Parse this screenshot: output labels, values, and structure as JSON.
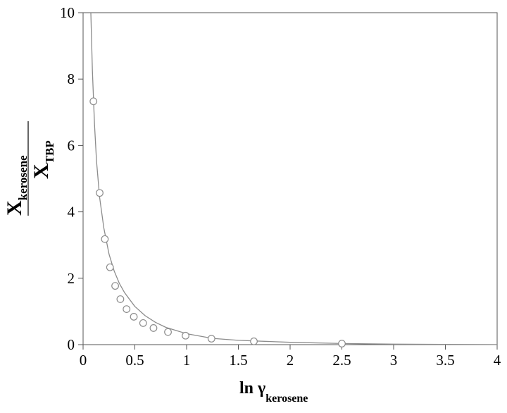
{
  "chart_data": {
    "type": "scatter",
    "xlabel": {
      "main": "ln γ",
      "sub": "kerosene"
    },
    "ylabel": {
      "numerator": {
        "main": "X",
        "sub": "kerosene"
      },
      "denominator": {
        "main": "X",
        "sub": "TBP"
      }
    },
    "xlim": [
      0,
      4
    ],
    "ylim": [
      0,
      10
    ],
    "x_ticks": [
      0,
      0.5,
      1,
      1.5,
      2,
      2.5,
      3,
      3.5,
      4
    ],
    "x_tick_labels": [
      "0",
      "0.5",
      "1",
      "1.5",
      "2",
      "2.5",
      "3",
      "3.5",
      "4"
    ],
    "y_ticks": [
      0,
      2,
      4,
      6,
      8,
      10
    ],
    "y_tick_labels": [
      "0",
      "2",
      "4",
      "6",
      "8",
      "10"
    ],
    "grid": false,
    "series": [
      {
        "kind": "points",
        "marker": "open-circle",
        "x": [
          0.1,
          0.16,
          0.21,
          0.26,
          0.31,
          0.36,
          0.42,
          0.49,
          0.58,
          0.68,
          0.82,
          0.99,
          1.24,
          1.65,
          2.5
        ],
        "y": [
          7.33,
          4.57,
          3.18,
          2.33,
          1.77,
          1.37,
          1.07,
          0.84,
          0.65,
          0.5,
          0.38,
          0.27,
          0.18,
          0.1,
          0.03
        ]
      },
      {
        "kind": "fit-curve",
        "x": [
          0.075,
          0.09,
          0.11,
          0.13,
          0.16,
          0.2,
          0.25,
          0.3,
          0.35,
          0.4,
          0.5,
          0.6,
          0.7,
          0.8,
          1.0,
          1.25,
          1.5,
          2.0,
          2.5,
          3.0,
          3.5,
          4.0
        ],
        "y": [
          10.0,
          8.26,
          6.64,
          5.52,
          4.43,
          3.52,
          2.73,
          2.22,
          1.85,
          1.57,
          1.15,
          0.87,
          0.67,
          0.52,
          0.33,
          0.19,
          0.13,
          0.07,
          0.035,
          0.015,
          0.007,
          0.003
        ]
      }
    ],
    "colors": {
      "marker": "#8c8c8c",
      "curve": "#8c8c8c",
      "axis": "#555555"
    }
  }
}
